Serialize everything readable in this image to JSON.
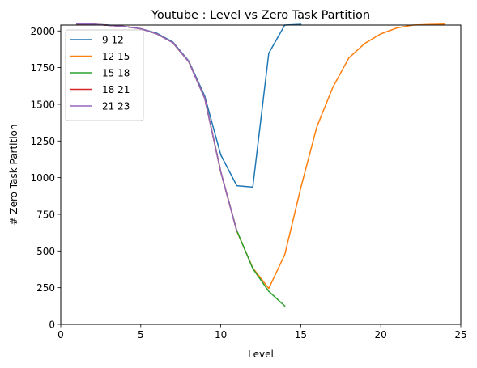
{
  "chart_data": {
    "type": "line",
    "title": "Youtube : Level vs Zero Task Partition",
    "xlabel": "Level",
    "ylabel": "# Zero Task Partition",
    "xlim": [
      0,
      25
    ],
    "ylim": [
      0,
      2040
    ],
    "xticks": [
      0,
      5,
      10,
      15,
      20,
      25
    ],
    "yticks": [
      0,
      250,
      500,
      750,
      1000,
      1250,
      1500,
      1750,
      2000
    ],
    "grid": false,
    "legend_position": "top-left",
    "series": [
      {
        "name": "9 12",
        "color": "#1f77b4",
        "x": [
          1,
          2,
          3,
          4,
          5,
          6,
          7,
          8,
          9,
          10,
          11,
          12,
          13,
          14,
          15
        ],
        "y": [
          2048,
          2047,
          2040,
          2030,
          2015,
          1985,
          1925,
          1795,
          1555,
          1155,
          945,
          935,
          1848,
          2040,
          2045
        ]
      },
      {
        "name": "12 15",
        "color": "#ff7f0e",
        "x": [
          1,
          2,
          3,
          4,
          5,
          6,
          7,
          8,
          9,
          10,
          11,
          12,
          13,
          14,
          15,
          16,
          17,
          18,
          19,
          20,
          21,
          22,
          23,
          24
        ],
        "y": [
          2048,
          2047,
          2038,
          2030,
          2015,
          1980,
          1920,
          1790,
          1540,
          1040,
          635,
          385,
          245,
          475,
          930,
          1345,
          1615,
          1815,
          1915,
          1980,
          2020,
          2040,
          2044,
          2047
        ]
      },
      {
        "name": "15 18",
        "color": "#2ca02c",
        "x": [
          1,
          2,
          3,
          4,
          5,
          6,
          7,
          8,
          9,
          10,
          11,
          12,
          13,
          14
        ],
        "y": [
          2048,
          2047,
          2038,
          2030,
          2015,
          1980,
          1920,
          1790,
          1540,
          1040,
          640,
          380,
          225,
          125
        ]
      },
      {
        "name": "18 21",
        "color": "#d62728",
        "x": [
          1,
          2,
          3,
          4,
          5,
          6,
          7,
          8,
          9,
          10,
          11
        ],
        "y": [
          2048,
          2047,
          2038,
          2030,
          2015,
          1980,
          1920,
          1790,
          1540,
          1040,
          635
        ]
      },
      {
        "name": "21 23",
        "color": "#9467bd",
        "x": [
          1,
          2,
          3,
          4,
          5,
          6,
          7,
          8,
          9,
          10,
          11
        ],
        "y": [
          2048,
          2047,
          2038,
          2030,
          2015,
          1980,
          1920,
          1790,
          1540,
          1040,
          635
        ]
      }
    ]
  }
}
